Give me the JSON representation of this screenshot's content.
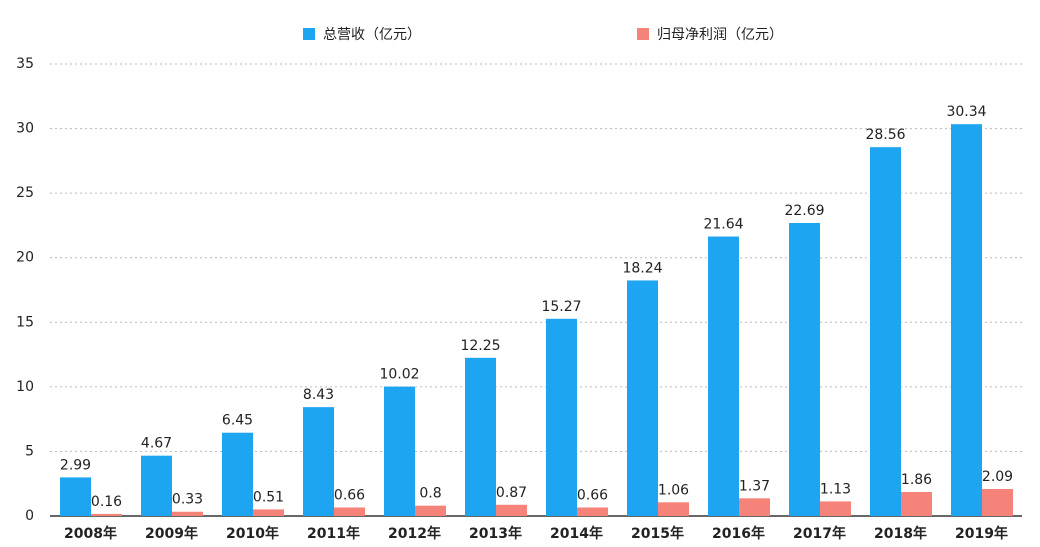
{
  "chart_data": {
    "type": "bar",
    "categories": [
      "2008年",
      "2009年",
      "2010年",
      "2011年",
      "2012年",
      "2013年",
      "2014年",
      "2015年",
      "2016年",
      "2017年",
      "2018年",
      "2019年"
    ],
    "series": [
      {
        "name": "总营收（亿元）",
        "color": "#1ea5f2",
        "values": [
          2.99,
          4.67,
          6.45,
          8.43,
          10.02,
          12.25,
          15.27,
          18.24,
          21.64,
          22.69,
          28.56,
          30.34
        ]
      },
      {
        "name": "归母净利润（亿元）",
        "color": "#f5837a",
        "values": [
          0.16,
          0.33,
          0.51,
          0.66,
          0.8,
          0.87,
          0.66,
          1.06,
          1.37,
          1.13,
          1.86,
          2.09
        ]
      }
    ],
    "ylim": [
      0,
      35
    ],
    "yticks": [
      0,
      5,
      10,
      15,
      20,
      25,
      30,
      35
    ],
    "grid": true,
    "legend": "top"
  }
}
